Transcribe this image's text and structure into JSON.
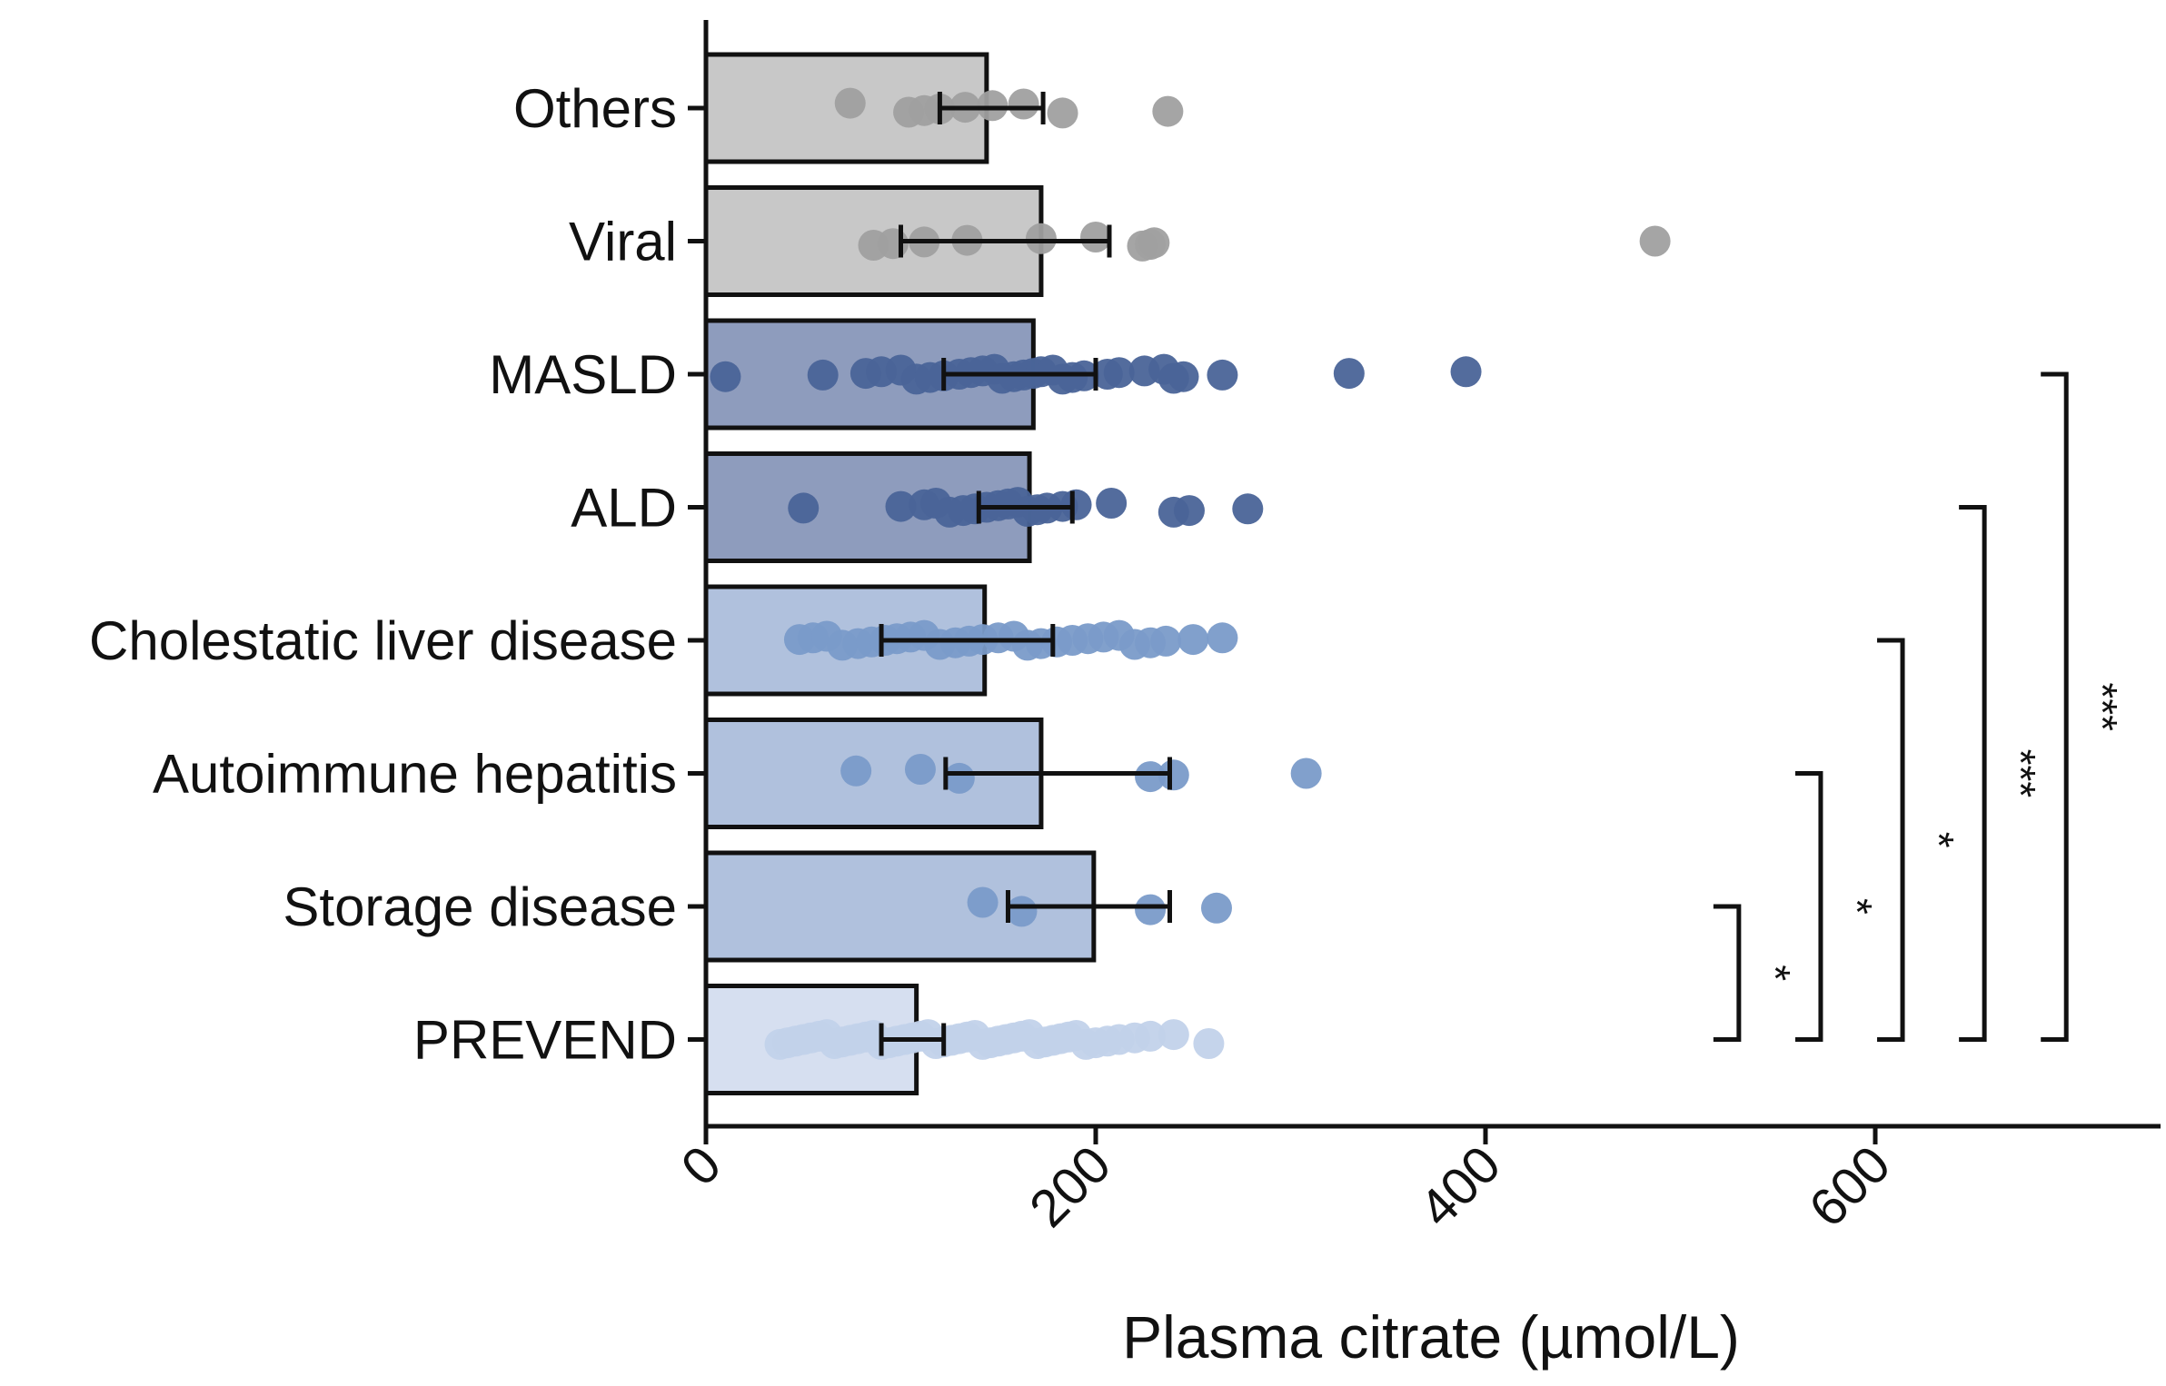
{
  "chart_data": {
    "type": "bar",
    "orientation": "horizontal",
    "xlabel": "Plasma citrate (µmol/L)",
    "ylabel": "",
    "xlim": [
      0,
      735
    ],
    "xticks": [
      {
        "value": 0,
        "label": "0"
      },
      {
        "value": 200,
        "label": "200"
      },
      {
        "value": 400,
        "label": "400"
      },
      {
        "value": 600,
        "label": "600"
      }
    ],
    "grid": false,
    "categories": [
      "Others",
      "Viral",
      "MASLD",
      "ALD",
      "Cholestatic liver disease",
      "Autoimmune hepatitis",
      "Storage disease",
      "PREVEND"
    ],
    "bars": [
      {
        "value": 144,
        "err_low": 120,
        "err_high": 173,
        "fill": "#c8c8c8",
        "point_color": "#a0a0a0",
        "points": [
          74,
          104,
          112,
          120,
          133,
          147,
          163,
          183,
          237
        ]
      },
      {
        "value": 172,
        "err_low": 100,
        "err_high": 207,
        "fill": "#c8c8c8",
        "point_color": "#a0a0a0",
        "points": [
          86,
          96,
          112,
          134,
          172,
          200,
          224,
          228,
          230,
          487
        ]
      },
      {
        "value": 168,
        "err_low": 122,
        "err_high": 200,
        "fill": "#8e9cbd",
        "point_color": "#4a6498",
        "points": [
          10,
          60,
          82,
          90,
          100,
          108,
          115,
          122,
          130,
          136,
          142,
          148,
          152,
          158,
          163,
          168,
          172,
          178,
          183,
          188,
          194,
          206,
          212,
          225,
          235,
          240,
          245,
          265,
          330,
          390
        ]
      },
      {
        "value": 166,
        "err_low": 140,
        "err_high": 188,
        "fill": "#8e9cbd",
        "point_color": "#4a6498",
        "points": [
          50,
          100,
          112,
          118,
          125,
          132,
          138,
          144,
          150,
          155,
          160,
          165,
          170,
          175,
          183,
          190,
          208,
          240,
          248,
          278
        ]
      },
      {
        "value": 143,
        "err_low": 90,
        "err_high": 178,
        "fill": "#b0c1dd",
        "point_color": "#7a9bc9",
        "points": [
          48,
          55,
          62,
          70,
          78,
          85,
          92,
          98,
          105,
          112,
          120,
          128,
          135,
          142,
          150,
          158,
          165,
          172,
          180,
          188,
          196,
          204,
          212,
          220,
          228,
          236,
          250,
          265
        ]
      },
      {
        "value": 172,
        "err_low": 123,
        "err_high": 238,
        "fill": "#b0c1dd",
        "point_color": "#7a9bc9",
        "points": [
          77,
          110,
          130,
          228,
          240,
          308
        ]
      },
      {
        "value": 199,
        "err_low": 155,
        "err_high": 238,
        "fill": "#b0c1dd",
        "point_color": "#7a9bc9",
        "points": [
          142,
          162,
          228,
          262
        ]
      },
      {
        "value": 108,
        "err_low": 90,
        "err_high": 122,
        "fill": "#d6dff0",
        "point_color": "#c2d2ea",
        "points": [
          38,
          42,
          46,
          50,
          54,
          58,
          62,
          66,
          70,
          74,
          78,
          82,
          86,
          90,
          94,
          98,
          102,
          106,
          110,
          114,
          118,
          122,
          126,
          130,
          134,
          138,
          142,
          146,
          150,
          154,
          158,
          162,
          166,
          170,
          174,
          178,
          182,
          186,
          190,
          195,
          200,
          206,
          212,
          220,
          228,
          240,
          258
        ]
      }
    ],
    "comparisons": [
      {
        "from": "Storage disease",
        "to": "PREVEND",
        "x": 530,
        "label": "*"
      },
      {
        "from": "Autoimmune hepatitis",
        "to": "PREVEND",
        "x": 572,
        "label": "*"
      },
      {
        "from": "Cholestatic liver disease",
        "to": "PREVEND",
        "x": 614,
        "label": "*"
      },
      {
        "from": "ALD",
        "to": "PREVEND",
        "x": 656,
        "label": "***"
      },
      {
        "from": "MASLD",
        "to": "PREVEND",
        "x": 698,
        "label": "***"
      }
    ]
  }
}
